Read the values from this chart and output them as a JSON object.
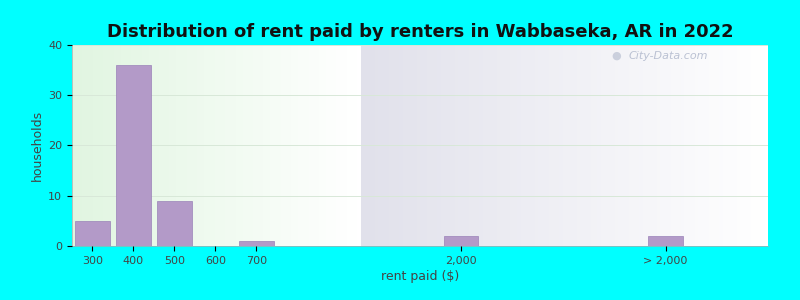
{
  "title": "Distribution of rent paid by renters in Wabbaseka, AR in 2022",
  "xlabel": "rent paid ($)",
  "ylabel": "households",
  "background_color": "#00FFFF",
  "bar_color": "#b39ac8",
  "bar_edge_color": "#9a82b8",
  "categories": [
    "300",
    "400",
    "500",
    "600",
    "700",
    "2,000",
    "> 2,000"
  ],
  "values": [
    5,
    36,
    9,
    0,
    1,
    2,
    2
  ],
  "ylim": [
    0,
    40
  ],
  "yticks": [
    0,
    10,
    20,
    30,
    40
  ],
  "title_fontsize": 13,
  "axis_label_fontsize": 9,
  "tick_fontsize": 8,
  "watermark_text": "City-Data.com",
  "watermark_color": "#b0b8cc",
  "grid_color": "#d8e8d8",
  "bg_left_color": "#e0f4e0",
  "bg_right_color": "#e8e0f0",
  "bg_top_color": "#f8fff8",
  "x_positions": [
    0,
    1,
    2,
    3,
    4,
    9,
    14
  ],
  "x_lim_left": -0.5,
  "x_lim_right": 16.5,
  "split_x": 6.5
}
